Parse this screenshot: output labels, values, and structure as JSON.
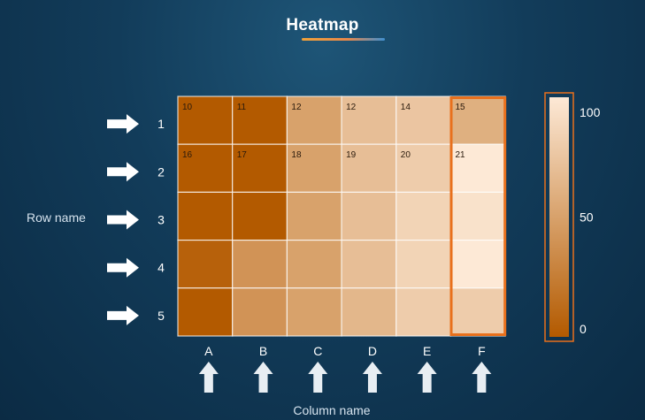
{
  "title": "Heatmap",
  "row_axis_label": "Row name",
  "column_axis_label": "Column name",
  "colorbar_ticks": [
    "100",
    "50",
    "0"
  ],
  "colors": {
    "low": "#b35a00",
    "high": "#fde9d6",
    "highlight": "#e8701c"
  },
  "chart_data": {
    "type": "heatmap",
    "title": "Heatmap",
    "xlabel": "Column name",
    "ylabel": "Row name",
    "columns": [
      "A",
      "B",
      "C",
      "D",
      "E",
      "F"
    ],
    "rows": [
      "1",
      "2",
      "3",
      "4",
      "5"
    ],
    "values": [
      [
        10,
        11,
        12,
        12,
        14,
        15
      ],
      [
        16,
        17,
        18,
        19,
        20,
        21
      ],
      [
        null,
        null,
        null,
        null,
        null,
        null
      ],
      [
        null,
        null,
        null,
        null,
        null,
        null
      ],
      [
        null,
        null,
        null,
        null,
        null,
        null
      ]
    ],
    "intensity": [
      [
        0,
        0,
        50,
        70,
        75,
        60
      ],
      [
        0,
        0,
        50,
        70,
        80,
        100
      ],
      [
        0,
        0,
        50,
        70,
        85,
        95
      ],
      [
        5,
        40,
        50,
        70,
        85,
        100
      ],
      [
        0,
        40,
        50,
        65,
        80,
        80
      ]
    ],
    "highlighted_column": "F",
    "colorbar_range": [
      0,
      100
    ]
  }
}
